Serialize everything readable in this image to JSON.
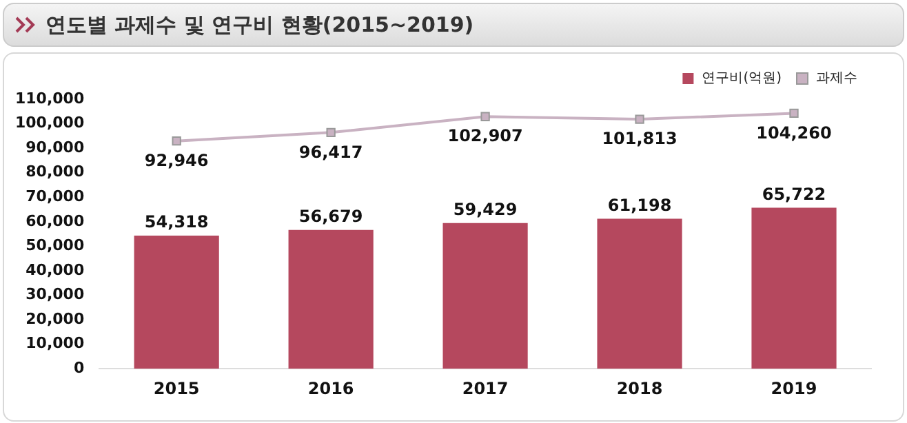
{
  "chart_data": {
    "type": "bar",
    "title": "연도별 과제수 및 연구비 현황(2015~2019)",
    "categories": [
      "2015",
      "2016",
      "2017",
      "2018",
      "2019"
    ],
    "series": [
      {
        "name": "연구비(억원)",
        "color": "#b5485e",
        "values": [
          54318,
          56679,
          59429,
          61198,
          65722
        ],
        "value_labels": [
          "54,318",
          "56,679",
          "59,429",
          "61,198",
          "65,722"
        ]
      },
      {
        "name": "과제수",
        "type": "line",
        "color": "#c9b2c2",
        "values": [
          92946,
          96417,
          102907,
          101813,
          104260
        ],
        "value_labels": [
          "92,946",
          "96,417",
          "102,907",
          "101,813",
          "104,260"
        ]
      }
    ],
    "ylim": [
      0,
      110000
    ],
    "yticks": [
      {
        "value": 0,
        "label": "0"
      },
      {
        "value": 10000,
        "label": "10,000"
      },
      {
        "value": 20000,
        "label": "20,000"
      },
      {
        "value": 30000,
        "label": "30,000"
      },
      {
        "value": 40000,
        "label": "40,000"
      },
      {
        "value": 50000,
        "label": "50,000"
      },
      {
        "value": 60000,
        "label": "60,000"
      },
      {
        "value": 70000,
        "label": "70,000"
      },
      {
        "value": 80000,
        "label": "80,000"
      },
      {
        "value": 90000,
        "label": "90,000"
      },
      {
        "value": 100000,
        "label": "100,000"
      },
      {
        "value": 110000,
        "label": "110,000"
      }
    ],
    "marker": "square",
    "legend": "top right"
  }
}
